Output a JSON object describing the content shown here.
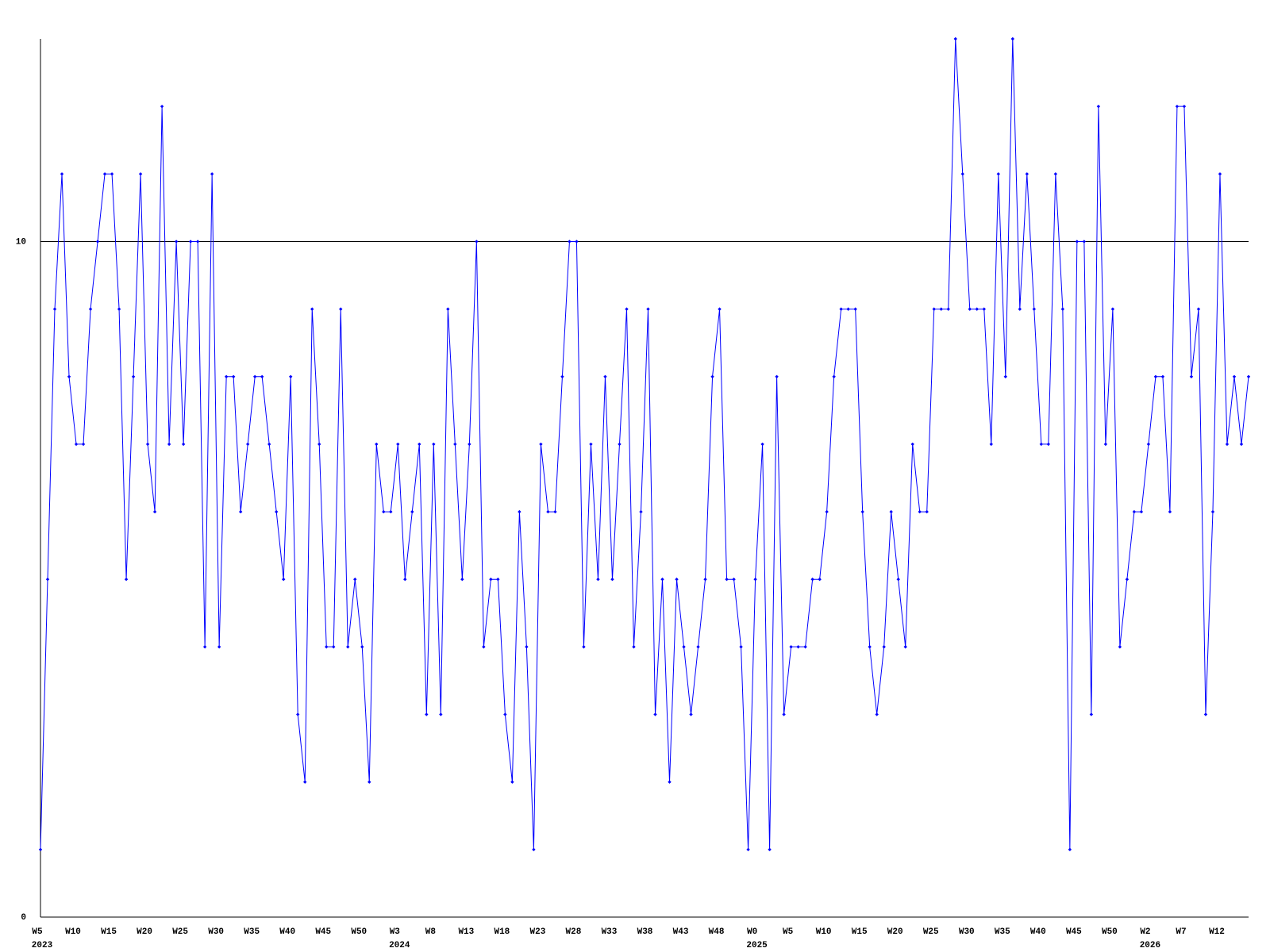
{
  "chart_data": {
    "type": "line",
    "categories": [
      "W5",
      null,
      null,
      null,
      null,
      "W10",
      null,
      null,
      null,
      null,
      "W15",
      null,
      null,
      null,
      null,
      "W20",
      null,
      null,
      null,
      null,
      "W25",
      null,
      null,
      null,
      null,
      "W30",
      null,
      null,
      null,
      null,
      "W35",
      null,
      null,
      null,
      null,
      "W40",
      null,
      null,
      null,
      null,
      "W45",
      null,
      null,
      null,
      null,
      "W50",
      null,
      null,
      null,
      null,
      "W3",
      null,
      null,
      null,
      null,
      "W8",
      null,
      null,
      null,
      null,
      "W13",
      null,
      null,
      null,
      null,
      "W18",
      null,
      null,
      null,
      null,
      "W23",
      null,
      null,
      null,
      null,
      "W28",
      null,
      null,
      null,
      null,
      "W33",
      null,
      null,
      null,
      null,
      "W38",
      null,
      null,
      null,
      null,
      "W43",
      null,
      null,
      null,
      null,
      "W48",
      null,
      null,
      null,
      null,
      "W0",
      null,
      null,
      null,
      null,
      "W5",
      null,
      null,
      null,
      null,
      "W10",
      null,
      null,
      null,
      null,
      "W15",
      null,
      null,
      null,
      null,
      "W20",
      null,
      null,
      null,
      null,
      "W25",
      null,
      null,
      null,
      null,
      "W30",
      null,
      null,
      null,
      null,
      "W35",
      null,
      null,
      null,
      null,
      "W40",
      null,
      null,
      null,
      null,
      "W45",
      null,
      null,
      null,
      null,
      "W50",
      null,
      null,
      null,
      null,
      "W2",
      null,
      null,
      null,
      null,
      "W7",
      null,
      null,
      null,
      null,
      "W12",
      null,
      null,
      null,
      null
    ],
    "years": [
      "2023",
      null,
      null,
      null,
      null,
      null,
      null,
      null,
      null,
      null,
      null,
      null,
      null,
      null,
      null,
      null,
      null,
      null,
      null,
      null,
      null,
      null,
      null,
      null,
      null,
      null,
      null,
      null,
      null,
      null,
      null,
      null,
      null,
      null,
      null,
      null,
      null,
      null,
      null,
      null,
      null,
      null,
      null,
      null,
      null,
      null,
      null,
      null,
      null,
      null,
      "2024",
      null,
      null,
      null,
      null,
      null,
      null,
      null,
      null,
      null,
      null,
      null,
      null,
      null,
      null,
      null,
      null,
      null,
      null,
      null,
      null,
      null,
      null,
      null,
      null,
      null,
      null,
      null,
      null,
      null,
      null,
      null,
      null,
      null,
      null,
      null,
      null,
      null,
      null,
      null,
      null,
      null,
      null,
      null,
      null,
      null,
      null,
      null,
      null,
      null,
      "2025",
      null,
      null,
      null,
      null,
      null,
      null,
      null,
      null,
      null,
      null,
      null,
      null,
      null,
      null,
      null,
      null,
      null,
      null,
      null,
      null,
      null,
      null,
      null,
      null,
      null,
      null,
      null,
      null,
      null,
      null,
      null,
      null,
      null,
      null,
      null,
      null,
      null,
      null,
      null,
      null,
      null,
      null,
      null,
      null,
      null,
      null,
      null,
      null,
      null,
      null,
      null,
      null,
      null,
      null,
      "2026",
      null,
      null,
      null,
      null,
      null,
      null,
      null,
      null,
      null,
      null,
      null,
      null,
      null,
      null
    ],
    "series": [
      {
        "color": "#0000ff",
        "values": [
          1,
          5,
          9,
          11,
          8,
          7,
          7,
          9,
          10,
          11,
          11,
          9,
          5,
          8,
          11,
          7,
          6,
          12,
          7,
          10,
          7,
          10,
          10,
          4,
          11,
          4,
          8,
          8,
          6,
          7,
          8,
          8,
          7,
          6,
          5,
          8,
          3,
          2,
          9,
          7,
          4,
          4,
          9,
          4,
          5,
          4,
          2,
          7,
          6,
          6,
          7,
          5,
          6,
          7,
          3,
          7,
          3,
          9,
          7,
          5,
          7,
          10,
          4,
          5,
          5,
          3,
          2,
          6,
          4,
          1,
          7,
          6,
          6,
          8,
          10,
          10,
          4,
          7,
          5,
          8,
          5,
          7,
          9,
          4,
          6,
          9,
          3,
          5,
          2,
          5,
          4,
          3,
          4,
          5,
          8,
          9,
          5,
          5,
          4,
          1,
          5,
          7,
          1,
          8,
          3,
          4,
          4,
          4,
          5,
          5,
          6,
          8,
          9,
          9,
          9,
          6,
          4,
          3,
          4,
          6,
          5,
          4,
          7,
          6,
          6,
          9,
          9,
          9,
          13,
          11,
          9,
          9,
          9,
          7,
          11,
          8,
          13,
          9,
          11,
          9,
          7,
          7,
          11,
          9,
          1,
          10,
          10,
          3,
          12,
          7,
          9,
          4,
          5,
          6,
          6,
          7,
          8,
          8,
          6,
          12,
          12,
          8,
          9,
          3,
          6,
          11,
          7,
          8,
          7,
          8
        ]
      }
    ],
    "ylim": [
      0,
      13
    ],
    "yticks": [
      0,
      10
    ],
    "grid": true
  }
}
